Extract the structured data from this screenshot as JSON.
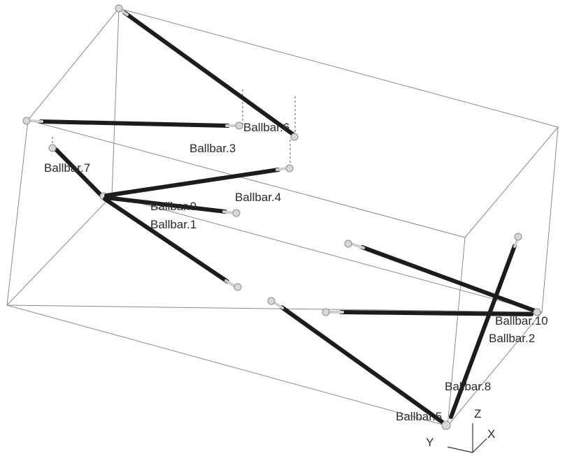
{
  "labels": {
    "ballbar_6": "Ballbar.6",
    "ballbar_3": "Ballbar.3",
    "ballbar_7": "Ballbar.7",
    "ballbar_4": "Ballbar.4",
    "ballbar_9": "Ballbar.9",
    "ballbar_1": "Ballbar.1",
    "ballbar_10": "Ballbar.10",
    "ballbar_2": "Ballbar.2",
    "ballbar_8": "Ballbar.8",
    "ballbar_5": "Ballbar.5"
  },
  "triad": {
    "x": "X",
    "y": "Y",
    "z": "Z"
  },
  "colors": {
    "bar": "#1c1c1c",
    "edge": "#8a8a8a",
    "ball": "#d8d8d8",
    "background": "#ffffff"
  }
}
